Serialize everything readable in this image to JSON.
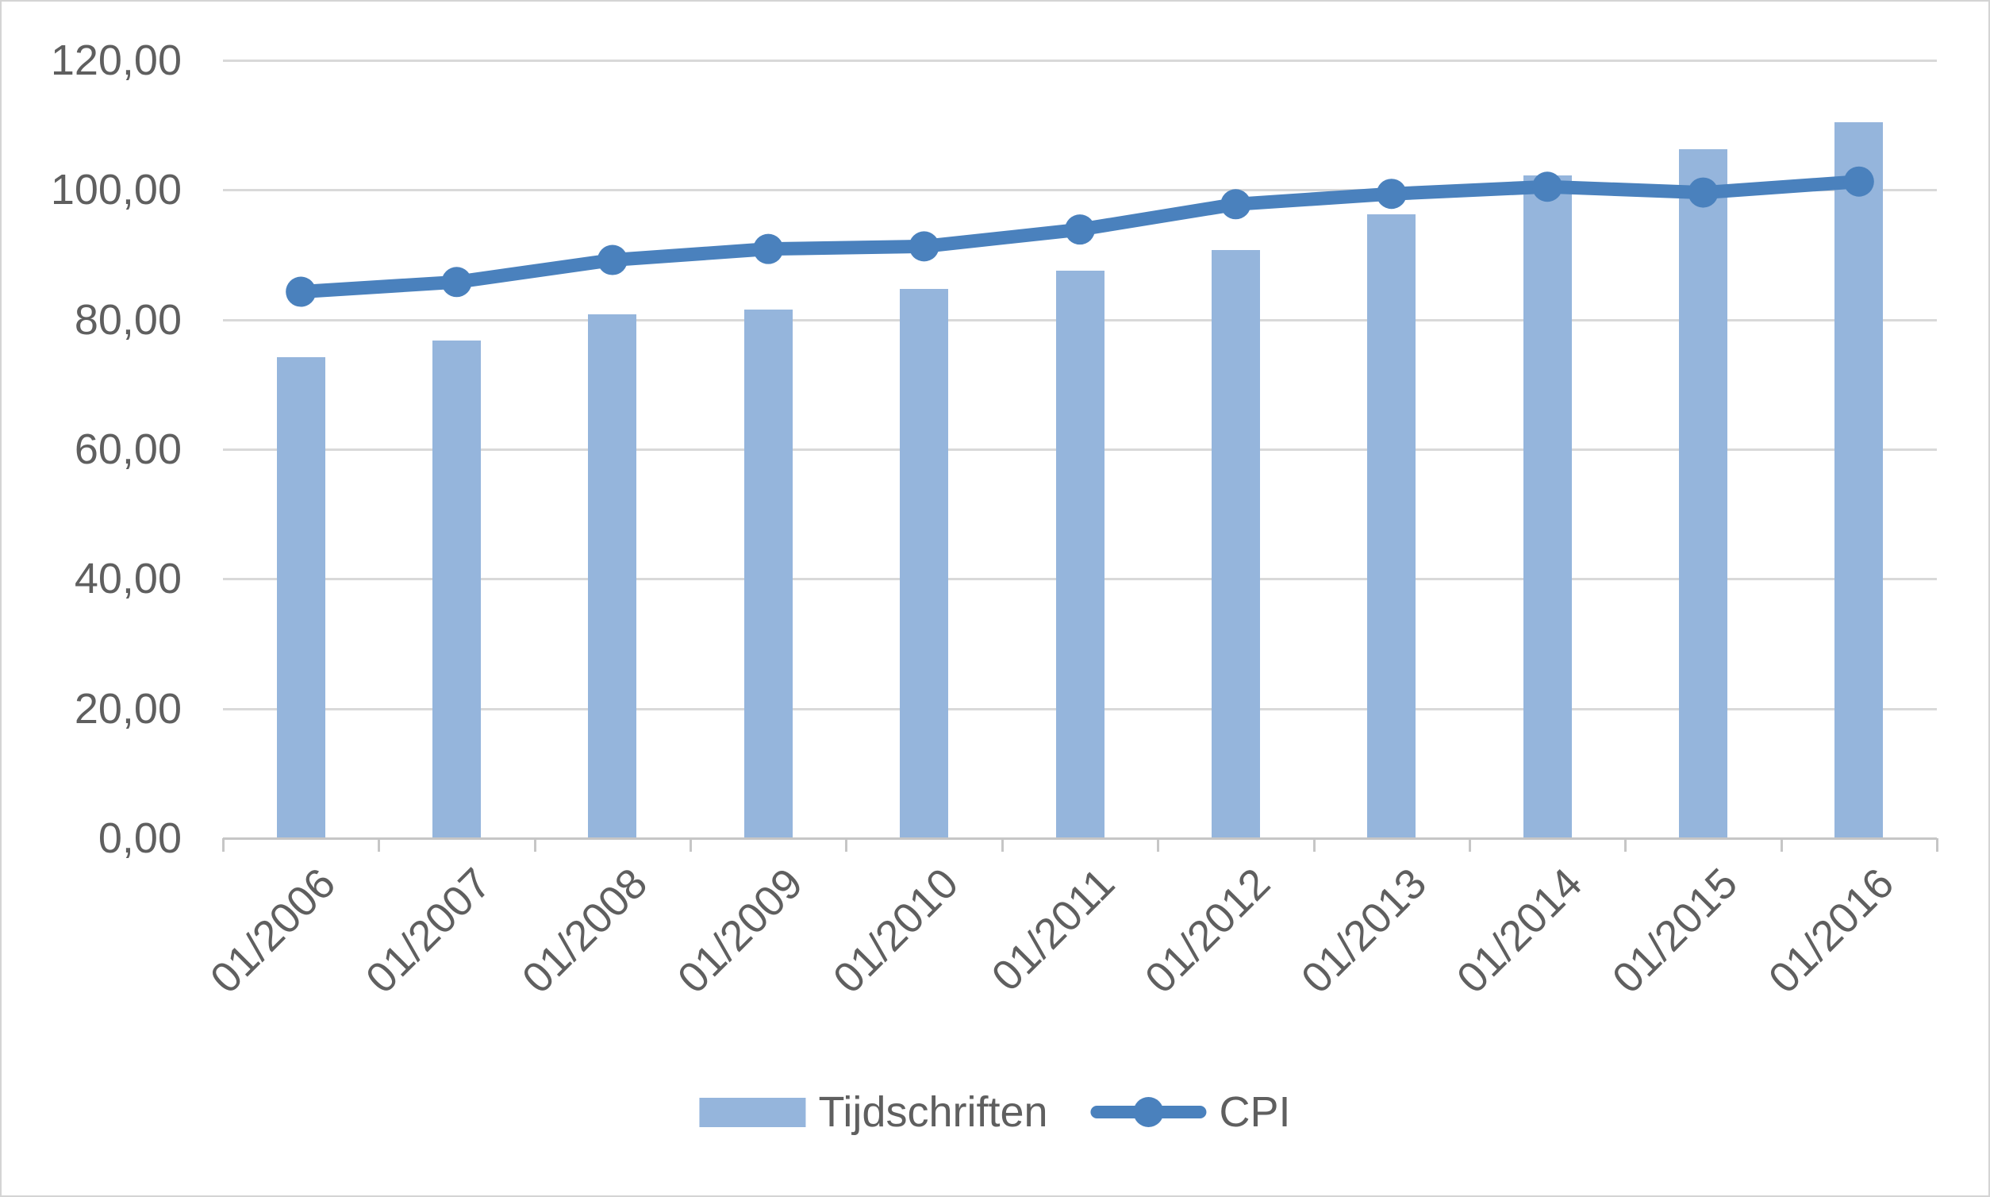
{
  "chart_data": {
    "type": "combo",
    "title": "",
    "categories": [
      "01/2006",
      "01/2007",
      "01/2008",
      "01/2009",
      "01/2010",
      "01/2011",
      "01/2012",
      "01/2013",
      "01/2014",
      "01/2015",
      "01/2016"
    ],
    "series": [
      {
        "name": "Tijdschriften",
        "type": "bar",
        "color": "#95B5DC",
        "values": [
          74.2,
          76.8,
          80.8,
          81.5,
          84.7,
          87.5,
          90.7,
          96.3,
          102.2,
          106.3,
          110.5
        ]
      },
      {
        "name": "CPI",
        "type": "line",
        "color": "#4A81BD",
        "values": [
          84.3,
          85.8,
          89.2,
          90.9,
          91.3,
          93.9,
          97.8,
          99.4,
          100.5,
          99.6,
          101.3
        ]
      }
    ],
    "y_axis": {
      "min": 0,
      "max": 120,
      "step": 20,
      "tick_labels": [
        "0,00",
        "20,00",
        "40,00",
        "60,00",
        "80,00",
        "100,00",
        "120,00"
      ]
    },
    "x_axis": {
      "label_rotation_deg": -45
    },
    "legend": {
      "position": "bottom"
    },
    "grid": true,
    "style": {
      "gridline_color": "#D9D9D9",
      "axis_line_color": "#C6C6C6",
      "axis_text_color": "#5F5F5F",
      "background": "#FFFFFF"
    }
  }
}
